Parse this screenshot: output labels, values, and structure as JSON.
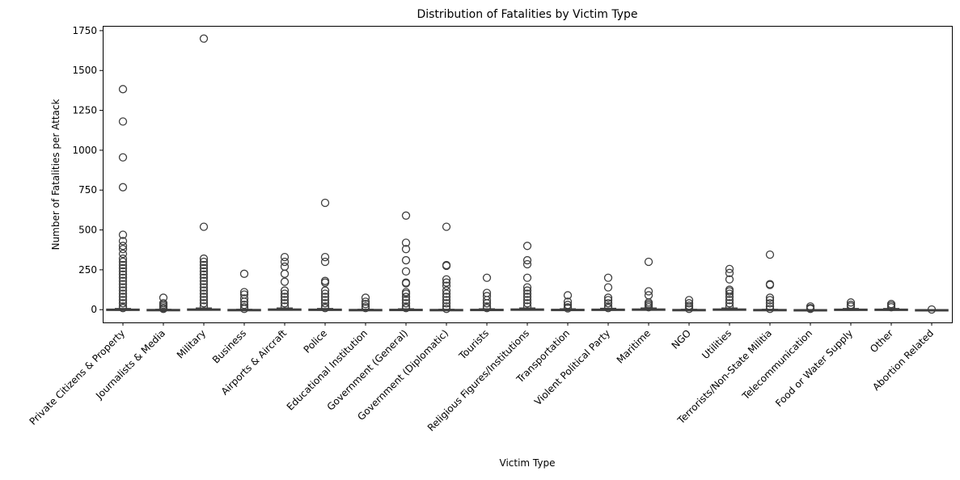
{
  "chart_data": {
    "type": "box",
    "title": "Distribution of Fatalities by Victim Type",
    "xlabel": "Victim Type",
    "ylabel": "Number of Fatalities per Attack",
    "ylim": [
      -80,
      1780
    ],
    "yticks": [
      0,
      250,
      500,
      750,
      1000,
      1250,
      1500,
      1750
    ],
    "grid": false,
    "box_color": "#3f3f3f",
    "categories": [
      {
        "name": "Private Citizens & Property",
        "q1": 0,
        "median": 1,
        "q3": 3,
        "whisker_high": 7,
        "outliers": [
          1383,
          1180,
          955,
          768,
          470,
          430,
          400,
          380,
          350,
          320,
          300,
          280,
          260,
          240,
          220,
          200,
          180,
          160,
          140,
          120,
          100,
          80,
          60,
          40,
          20,
          10
        ]
      },
      {
        "name": "Journalists & Media",
        "q1": 0,
        "median": 0,
        "q3": 1,
        "whisker_high": 2,
        "outliers": [
          75,
          40,
          30,
          20,
          10,
          5
        ]
      },
      {
        "name": "Military",
        "q1": 0,
        "median": 1,
        "q3": 4,
        "whisker_high": 10,
        "outliers": [
          1700,
          520,
          320,
          300,
          280,
          260,
          240,
          220,
          200,
          180,
          160,
          140,
          120,
          100,
          80,
          60,
          40,
          20
        ]
      },
      {
        "name": "Business",
        "q1": 0,
        "median": 0,
        "q3": 1,
        "whisker_high": 2,
        "outliers": [
          225,
          110,
          95,
          70,
          50,
          30,
          15,
          5
        ]
      },
      {
        "name": "Airports & Aircraft",
        "q1": 0,
        "median": 0,
        "q3": 4,
        "whisker_high": 10,
        "outliers": [
          330,
          300,
          270,
          225,
          175,
          120,
          100,
          80,
          60,
          40,
          20
        ]
      },
      {
        "name": "Police",
        "q1": 0,
        "median": 1,
        "q3": 3,
        "whisker_high": 7,
        "outliers": [
          670,
          330,
          300,
          180,
          170,
          120,
          100,
          80,
          60,
          40,
          20,
          10
        ]
      },
      {
        "name": "Educational Institution",
        "q1": 0,
        "median": 0,
        "q3": 1,
        "whisker_high": 2,
        "outliers": [
          75,
          50,
          35,
          20,
          10
        ]
      },
      {
        "name": "Government (General)",
        "q1": 0,
        "median": 0,
        "q3": 2,
        "whisker_high": 5,
        "outliers": [
          590,
          420,
          380,
          310,
          240,
          170,
          165,
          110,
          100,
          80,
          60,
          40,
          20,
          10
        ]
      },
      {
        "name": "Government (Diplomatic)",
        "q1": 0,
        "median": 0,
        "q3": 1,
        "whisker_high": 2,
        "outliers": [
          520,
          280,
          275,
          190,
          170,
          150,
          120,
          100,
          80,
          60,
          40,
          20,
          5
        ]
      },
      {
        "name": "Tourists",
        "q1": 0,
        "median": 0,
        "q3": 2,
        "whisker_high": 5,
        "outliers": [
          200,
          105,
          85,
          60,
          40,
          20,
          10
        ]
      },
      {
        "name": "Religious Figures/Institutions",
        "q1": 0,
        "median": 1,
        "q3": 4,
        "whisker_high": 10,
        "outliers": [
          400,
          310,
          285,
          200,
          140,
          120,
          100,
          80,
          60,
          40,
          20
        ]
      },
      {
        "name": "Transportation",
        "q1": 0,
        "median": 0,
        "q3": 2,
        "whisker_high": 5,
        "outliers": [
          90,
          50,
          30,
          15,
          8
        ]
      },
      {
        "name": "Violent Political Party",
        "q1": 0,
        "median": 0,
        "q3": 3,
        "whisker_high": 8,
        "outliers": [
          200,
          140,
          75,
          60,
          40,
          20,
          10
        ]
      },
      {
        "name": "Maritime",
        "q1": 0,
        "median": 0,
        "q3": 4,
        "whisker_high": 10,
        "outliers": [
          300,
          115,
          90,
          45,
          35,
          25,
          15
        ]
      },
      {
        "name": "NGO",
        "q1": 0,
        "median": 0,
        "q3": 1,
        "whisker_high": 2,
        "outliers": [
          60,
          40,
          25,
          15,
          5
        ]
      },
      {
        "name": "Utilities",
        "q1": 0,
        "median": 0,
        "q3": 4,
        "whisker_high": 10,
        "outliers": [
          255,
          230,
          190,
          125,
          115,
          100,
          80,
          60,
          40,
          20
        ]
      },
      {
        "name": "Terrorists/Non-State Militia",
        "q1": 0,
        "median": 0,
        "q3": 1,
        "whisker_high": 2,
        "outliers": [
          345,
          160,
          155,
          75,
          60,
          40,
          20,
          5
        ]
      },
      {
        "name": "Telecommunication",
        "q1": 0,
        "median": 0,
        "q3": 0,
        "whisker_high": 0,
        "outliers": [
          20,
          10,
          5
        ]
      },
      {
        "name": "Food or Water Supply",
        "q1": 0,
        "median": 1,
        "q3": 3,
        "whisker_high": 7,
        "outliers": [
          45,
          30,
          20
        ]
      },
      {
        "name": "Other",
        "q1": 0,
        "median": 1,
        "q3": 3,
        "whisker_high": 7,
        "outliers": [
          35,
          25,
          15
        ]
      },
      {
        "name": "Abortion Related",
        "q1": 0,
        "median": 0,
        "q3": 0,
        "whisker_high": 0,
        "outliers": [
          1
        ]
      }
    ]
  }
}
